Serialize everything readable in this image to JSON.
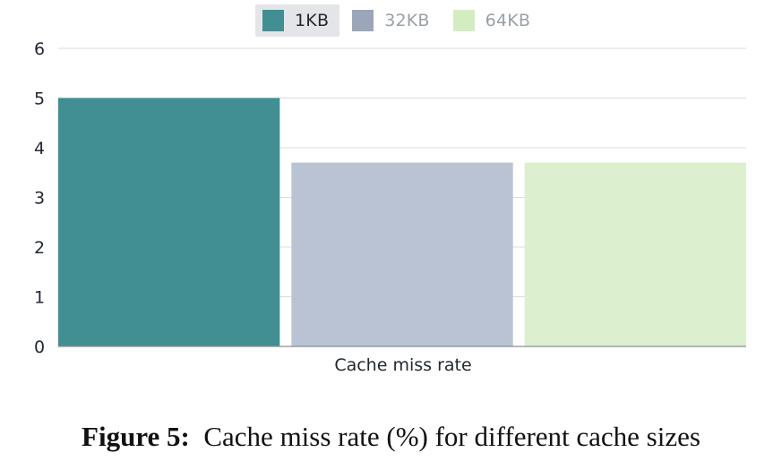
{
  "chart_data": {
    "type": "bar",
    "categories": [
      "Cache miss rate"
    ],
    "series": [
      {
        "name": "1KB",
        "values": [
          5
        ],
        "color": "#418f92"
      },
      {
        "name": "32KB",
        "values": [
          3.7
        ],
        "color": "#b9c3d3"
      },
      {
        "name": "64KB",
        "values": [
          3.7
        ],
        "color": "#dcf0cf"
      }
    ],
    "ylim": [
      0,
      6
    ],
    "yticks": [
      "0",
      "1",
      "2",
      "3",
      "4",
      "5",
      "6"
    ],
    "xlabel": "Cache miss rate",
    "grid": true,
    "legend_position": "top-center"
  },
  "caption": {
    "label": "Figure 5:",
    "text": "Cache miss  rate (%) for different cache sizes"
  }
}
